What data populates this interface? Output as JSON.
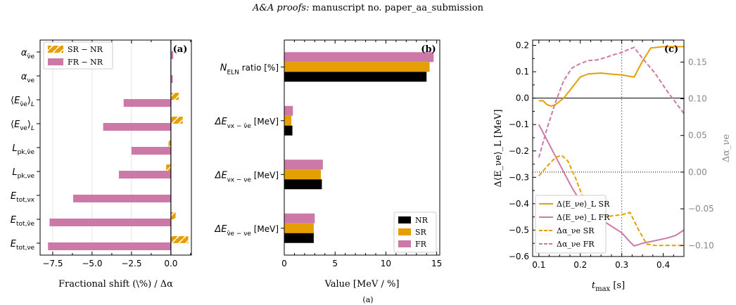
{
  "header": {
    "journal": "A&A proofs:",
    "rest": "manuscript no. paper_aa_submission"
  },
  "caption": "(a)",
  "colors": {
    "nr": "#000000",
    "sr": "#E69F00",
    "fr": "#CC79A7",
    "right_axis": "#888888"
  },
  "chart_data": [
    {
      "panel_label": "(a)",
      "type": "bar",
      "orientation": "horizontal",
      "xlabel": "Fractional shift (\\%) / Δα",
      "xlim": [
        -8.3,
        1.3
      ],
      "xticks": [
        "−7.5",
        "−5.0",
        "−2.5",
        "0.0"
      ],
      "xtick_values": [
        -7.5,
        -5.0,
        -2.5,
        0.0
      ],
      "categories": [
        "α_ν̄e",
        "α_νe",
        "⟨E_ν̄e⟩_L",
        "⟨E_νe⟩_L",
        "L_pk,ν̄e",
        "L_pk,νe",
        "E_tot,νx",
        "E_tot,ν̄e",
        "E_tot,νe"
      ],
      "series": [
        {
          "name": "SR − NR",
          "values": [
            0.0,
            0.0,
            0.5,
            0.75,
            -0.15,
            -0.3,
            0.0,
            0.3,
            1.1
          ]
        },
        {
          "name": "FR − NR",
          "values": [
            0.15,
            0.12,
            -3.0,
            -4.3,
            -2.5,
            -3.3,
            -6.2,
            -7.7,
            -7.8
          ]
        }
      ],
      "legend": "top-left"
    },
    {
      "panel_label": "(b)",
      "type": "bar",
      "orientation": "horizontal",
      "xlabel": "Value [MeV / %]",
      "xlim": [
        0,
        15.3
      ],
      "xticks": [
        "0",
        "5",
        "10",
        "15"
      ],
      "xtick_values": [
        0,
        5,
        10,
        15
      ],
      "categories": [
        "N_ELN ratio [%]",
        "ΔE_νx−ν̄e [MeV]",
        "ΔE_νx−νe [MeV]",
        "ΔE_ν̄e−νe [MeV]"
      ],
      "series": [
        {
          "name": "NR",
          "values": [
            14.0,
            0.8,
            3.7,
            2.9
          ]
        },
        {
          "name": "SR",
          "values": [
            14.3,
            0.7,
            3.6,
            2.9
          ]
        },
        {
          "name": "FR",
          "values": [
            14.7,
            0.85,
            3.8,
            3.0
          ]
        }
      ],
      "legend": "bottom-right"
    },
    {
      "panel_label": "(c)",
      "type": "line",
      "xlabel": "t_max [s]",
      "ylabel": "Δ⟨E_νe⟩_L [MeV]",
      "ylabel_right": "Δα_νe",
      "xlim": [
        0.085,
        0.45
      ],
      "ylim": [
        -0.6,
        0.22
      ],
      "ylim_right": [
        -0.115,
        0.18
      ],
      "xticks": [
        "0.1",
        "0.2",
        "0.3",
        "0.4"
      ],
      "xtick_values": [
        0.1,
        0.2,
        0.3,
        0.4
      ],
      "yticks": [
        "0.2",
        "0.1",
        "0.0",
        "−0.1",
        "−0.2",
        "−0.3",
        "−0.4",
        "−0.5",
        "−0.6"
      ],
      "ytick_values": [
        0.2,
        0.1,
        0.0,
        -0.1,
        -0.2,
        -0.3,
        -0.4,
        -0.5,
        -0.6
      ],
      "yticks_right": [
        "0.15",
        "0.10",
        "0.05",
        "0.00",
        "−0.05",
        "−0.10"
      ],
      "ytick_values_right": [
        0.15,
        0.1,
        0.05,
        0.0,
        -0.05,
        -0.1
      ],
      "vline_x": 0.3,
      "series": [
        {
          "name": "Δ⟨E_νe⟩_L SR",
          "axis": "left",
          "style": "solid",
          "color": "#E69F00",
          "x": [
            0.1,
            0.11,
            0.12,
            0.13,
            0.14,
            0.16,
            0.18,
            0.2,
            0.22,
            0.25,
            0.28,
            0.3,
            0.33,
            0.35,
            0.37,
            0.4,
            0.43,
            0.45
          ],
          "y": [
            -0.01,
            -0.01,
            -0.025,
            -0.03,
            -0.025,
            0.0,
            0.04,
            0.08,
            0.092,
            0.095,
            0.09,
            0.088,
            0.08,
            0.14,
            0.19,
            0.195,
            0.195,
            0.195
          ]
        },
        {
          "name": "Δ⟨E_νe⟩_L FR",
          "axis": "left",
          "style": "solid",
          "color": "#CC79A7",
          "x": [
            0.1,
            0.12,
            0.14,
            0.16,
            0.18,
            0.2,
            0.22,
            0.25,
            0.28,
            0.3,
            0.32,
            0.33,
            0.35,
            0.38,
            0.41,
            0.43,
            0.45
          ],
          "y": [
            -0.1,
            -0.16,
            -0.22,
            -0.28,
            -0.34,
            -0.39,
            -0.42,
            -0.46,
            -0.49,
            -0.51,
            -0.545,
            -0.56,
            -0.55,
            -0.54,
            -0.53,
            -0.52,
            -0.5
          ]
        },
        {
          "name": "Δα_νe SR",
          "axis": "right",
          "style": "dashed",
          "color": "#E69F00",
          "x": [
            0.1,
            0.12,
            0.14,
            0.155,
            0.17,
            0.19,
            0.21,
            0.24,
            0.27,
            0.3,
            0.32,
            0.34,
            0.36,
            0.38,
            0.41,
            0.45
          ],
          "y": [
            -0.005,
            0.008,
            0.02,
            0.023,
            0.015,
            -0.01,
            -0.04,
            -0.058,
            -0.06,
            -0.058,
            -0.055,
            -0.078,
            -0.098,
            -0.1,
            -0.1,
            -0.1
          ]
        },
        {
          "name": "Δα_νe FR",
          "axis": "right",
          "style": "dashed",
          "color": "#CC79A7",
          "x": [
            0.1,
            0.12,
            0.14,
            0.16,
            0.18,
            0.2,
            0.22,
            0.24,
            0.26,
            0.28,
            0.3,
            0.32,
            0.33,
            0.35,
            0.38,
            0.41,
            0.45
          ],
          "y": [
            0.02,
            0.06,
            0.095,
            0.125,
            0.142,
            0.148,
            0.152,
            0.153,
            0.156,
            0.16,
            0.163,
            0.168,
            0.17,
            0.155,
            0.135,
            0.11,
            0.08
          ]
        }
      ],
      "legend": "bottom-left"
    }
  ]
}
